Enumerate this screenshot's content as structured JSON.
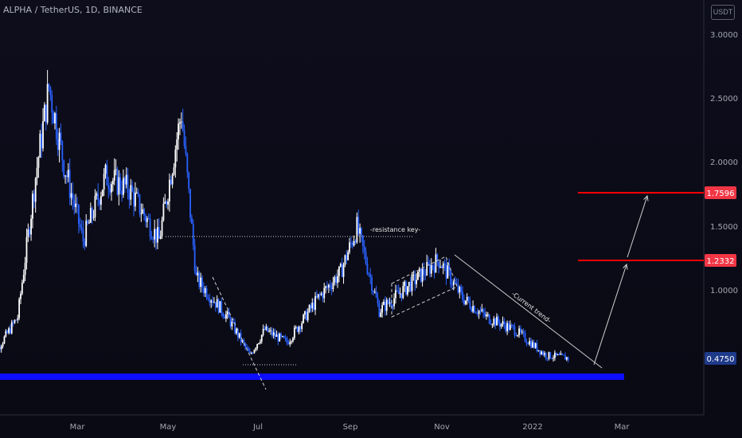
{
  "header": {
    "symbol": "ALPHA / TetherUS, 1D, BINANCE",
    "currency": "USDT"
  },
  "chart_data": {
    "type": "candlestick",
    "y_ticks": [
      "3.0000",
      "2.5000",
      "2.0000",
      "1.5000",
      "1.0000"
    ],
    "x_ticks": [
      "Mar",
      "May",
      "Jul",
      "Sep",
      "Nov",
      "2022",
      "Mar"
    ],
    "price_labels": [
      {
        "value": "1.7596",
        "color": "#f23645"
      },
      {
        "value": "1.2332",
        "color": "#f23645"
      },
      {
        "value": "0.4750",
        "color": "#1e3a8a"
      }
    ],
    "annotations": [
      "-resistance key-",
      "-Current trend-"
    ],
    "colors": {
      "up": "#ffffff",
      "down": "#2962ff",
      "support": "#0d0dff",
      "target": "#ff0000"
    },
    "series": [
      {
        "date": "2021-01-01",
        "price": 0.45
      },
      {
        "date": "2021-01-20",
        "price": 0.8
      },
      {
        "date": "2021-02-01",
        "price": 1.9
      },
      {
        "date": "2021-02-10",
        "price": 2.6
      },
      {
        "date": "2021-02-20",
        "price": 2.0
      },
      {
        "date": "2021-03-05",
        "price": 1.4
      },
      {
        "date": "2021-03-20",
        "price": 1.9
      },
      {
        "date": "2021-04-05",
        "price": 1.8
      },
      {
        "date": "2021-04-25",
        "price": 1.4
      },
      {
        "date": "2021-05-10",
        "price": 2.4
      },
      {
        "date": "2021-05-20",
        "price": 1.1
      },
      {
        "date": "2021-06-10",
        "price": 0.8
      },
      {
        "date": "2021-06-25",
        "price": 0.5
      },
      {
        "date": "2021-07-05",
        "price": 0.7
      },
      {
        "date": "2021-07-20",
        "price": 0.6
      },
      {
        "date": "2021-08-10",
        "price": 0.95
      },
      {
        "date": "2021-08-25",
        "price": 1.15
      },
      {
        "date": "2021-09-05",
        "price": 1.5
      },
      {
        "date": "2021-09-20",
        "price": 0.85
      },
      {
        "date": "2021-10-10",
        "price": 1.05
      },
      {
        "date": "2021-10-30",
        "price": 1.25
      },
      {
        "date": "2021-11-15",
        "price": 0.95
      },
      {
        "date": "2021-12-01",
        "price": 0.8
      },
      {
        "date": "2021-12-20",
        "price": 0.7
      },
      {
        "date": "2022-01-10",
        "price": 0.5
      },
      {
        "date": "2022-01-25",
        "price": 0.48
      }
    ]
  }
}
